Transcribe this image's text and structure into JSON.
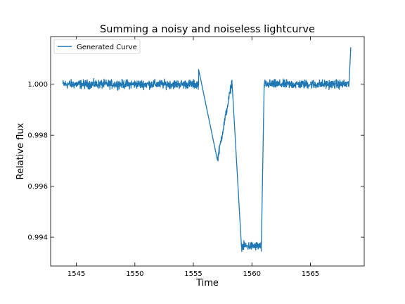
{
  "chart_data": {
    "type": "line",
    "title": "Summing a noisy and noiseless lightcurve",
    "xlabel": "Time",
    "ylabel": "Relative flux",
    "xlim": [
      1542.8,
      1569.6
    ],
    "ylim": [
      0.99287,
      1.00187
    ],
    "x_ticks": [
      1545,
      1550,
      1555,
      1560,
      1565
    ],
    "x_tick_labels": [
      "1545",
      "1550",
      "1555",
      "1560",
      "1565"
    ],
    "y_ticks": [
      0.994,
      0.996,
      0.998,
      1.0
    ],
    "y_tick_labels": [
      "0.994",
      "0.996",
      "0.998",
      "1.000"
    ],
    "grid": false,
    "legend_position": "top-left",
    "series": [
      {
        "name": "Generated Curve",
        "color": "#1f77b4",
        "segments": [
          {
            "x_start": 1543.85,
            "x_end": 1555.45,
            "baseline": 1.0,
            "noise": 0.00012
          },
          {
            "x_start": 1555.45,
            "x_end": 1557.05,
            "from": 1.00058,
            "to": 0.99703
          },
          {
            "x_start": 1557.05,
            "x_end": 1558.3,
            "from": 0.99703,
            "to": 1.0001,
            "noise": 0.00012
          },
          {
            "x_start": 1558.3,
            "x_end": 1559.1,
            "from": 1.0001,
            "to": 0.9937
          },
          {
            "x_start": 1559.1,
            "x_end": 1560.8,
            "baseline": 0.99365,
            "noise": 0.00012
          },
          {
            "x_start": 1560.8,
            "x_end": 1561.05,
            "from": 0.99345,
            "to": 1.0
          },
          {
            "x_start": 1561.05,
            "x_end": 1568.3,
            "baseline": 1.0,
            "noise": 0.00012
          },
          {
            "x_start": 1568.3,
            "x_end": 1568.45,
            "from": 1.0,
            "to": 1.00145
          }
        ]
      }
    ]
  }
}
